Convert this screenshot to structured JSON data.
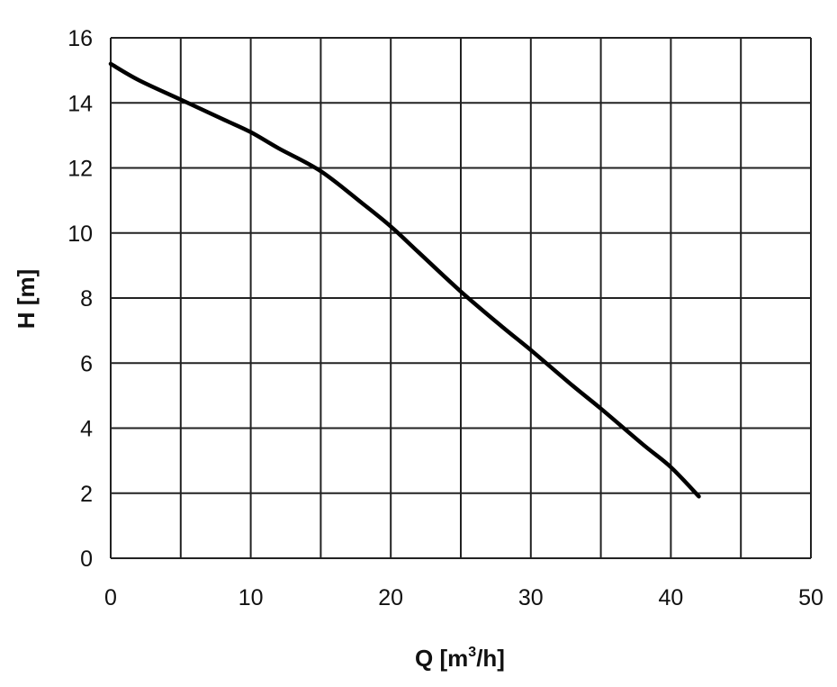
{
  "chart_data": {
    "type": "line",
    "title": "",
    "xlabel": "Q [m",
    "xlabel_sup": "3",
    "xlabel_suffix": "/h]",
    "ylabel": "H [m]",
    "xlim": [
      0,
      50
    ],
    "ylim": [
      0,
      16
    ],
    "xticks": [
      0,
      10,
      20,
      30,
      40,
      50
    ],
    "yticks": [
      0,
      2,
      4,
      6,
      8,
      10,
      12,
      14,
      16
    ],
    "x_grid": [
      0,
      5,
      10,
      15,
      20,
      25,
      30,
      35,
      40,
      45,
      50
    ],
    "y_grid": [
      0,
      2,
      4,
      6,
      8,
      10,
      12,
      14,
      16
    ],
    "grid": true,
    "series": [
      {
        "x": [
          0,
          2,
          5,
          8,
          10,
          12,
          15,
          18,
          20,
          22,
          25,
          28,
          30,
          33,
          35,
          38,
          40,
          42
        ],
        "y": [
          15.2,
          14.7,
          14.1,
          13.5,
          13.1,
          12.6,
          11.9,
          10.9,
          10.2,
          9.4,
          8.2,
          7.1,
          6.4,
          5.3,
          4.6,
          3.5,
          2.8,
          1.9
        ]
      }
    ]
  }
}
